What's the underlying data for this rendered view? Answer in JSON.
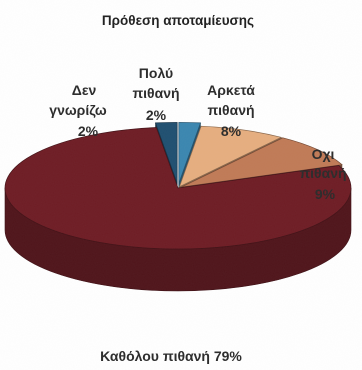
{
  "chart_data": {
    "type": "pie",
    "title": "Πρόθεση αποταμίευσης",
    "slices": [
      {
        "label": "Πολύ πιθανή",
        "value": 2,
        "value_label": "2%",
        "color": "#3a86b0"
      },
      {
        "label": "Αρκετά πιθανή",
        "value": 8,
        "value_label": "8%",
        "color": "#e6ae7f"
      },
      {
        "label": "Όχι πιθανή",
        "value": 9,
        "value_label": "9%",
        "color": "#c07a56"
      },
      {
        "label": "Καθόλου πιθανή",
        "value": 79,
        "value_label": "79%",
        "color": "#6e1c24"
      },
      {
        "label": "Δεν γνωρίζω",
        "value": 2,
        "value_label": "2%",
        "color": "#1f4f70"
      }
    ]
  },
  "labels": {
    "poly_line1": "Πολύ",
    "poly_line2": "πιθανή",
    "poly_line3": "2%",
    "arketa_line1": "Αρκετά",
    "arketa_line2": "πιθανή",
    "arketa_line3": "8%",
    "oxi_line1": "Οχι",
    "oxi_line2": "πιθανή",
    "oxi_line3": "9%",
    "den_line1": "Δεν",
    "den_line2": "γνωρίζω",
    "den_line3": "2%",
    "katholou": "Καθόλου πιθανή 79%"
  }
}
